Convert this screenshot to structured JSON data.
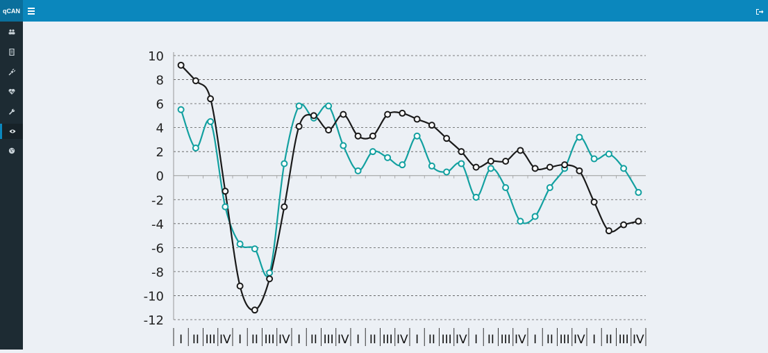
{
  "app": {
    "title": "qCAN"
  },
  "header": {
    "menu_icon": "hamburger-icon",
    "signout_icon": "sign-out-icon"
  },
  "sidebar": {
    "items": [
      {
        "icon": "users-icon"
      },
      {
        "icon": "document-icon"
      },
      {
        "icon": "plug-icon"
      },
      {
        "icon": "heartbeat-icon"
      },
      {
        "icon": "wrench-icon"
      },
      {
        "icon": "eye-icon",
        "active": true
      },
      {
        "icon": "globe-icon"
      }
    ]
  },
  "colors": {
    "header": "#0b87bd",
    "sidebar": "#1d2b33",
    "series_teal": "#12a0a0",
    "series_black": "#1a1a1a"
  },
  "chart_data": {
    "type": "line",
    "ylim": [
      -12,
      10
    ],
    "yticks": [
      "10",
      "8",
      "6",
      "4",
      "2",
      "0",
      "-2",
      "-4",
      "-6",
      "-8",
      "-10",
      "-12"
    ],
    "categories": [
      "I",
      "II",
      "III",
      "IV",
      "I",
      "II",
      "III",
      "IV",
      "I",
      "II",
      "III",
      "IV",
      "I",
      "II",
      "III",
      "IV",
      "I",
      "II",
      "III",
      "IV",
      "I",
      "II",
      "III",
      "IV",
      "I",
      "II",
      "III",
      "IV",
      "I",
      "II",
      "III",
      "IV"
    ],
    "series": [
      {
        "color": "#12a0a0",
        "values": [
          5.5,
          2.3,
          4.5,
          -2.6,
          -5.7,
          -6.1,
          -8.1,
          1.0,
          5.8,
          4.8,
          5.8,
          2.5,
          0.4,
          2.0,
          1.5,
          0.9,
          3.3,
          0.8,
          0.3,
          1.0,
          -1.8,
          0.6,
          -1.0,
          -3.8,
          -3.4,
          -1.0,
          0.6,
          3.2,
          1.4,
          1.8,
          0.6,
          -1.4
        ]
      },
      {
        "color": "#1a1a1a",
        "values": [
          9.2,
          7.9,
          6.4,
          -1.3,
          -9.2,
          -11.2,
          -8.6,
          -2.6,
          4.1,
          5.0,
          3.8,
          5.1,
          3.3,
          3.3,
          5.1,
          5.2,
          4.7,
          4.2,
          3.1,
          2.0,
          0.7,
          1.2,
          1.2,
          2.1,
          0.6,
          0.7,
          0.9,
          0.4,
          -2.2,
          -4.6,
          -4.1,
          -3.8
        ]
      }
    ]
  }
}
